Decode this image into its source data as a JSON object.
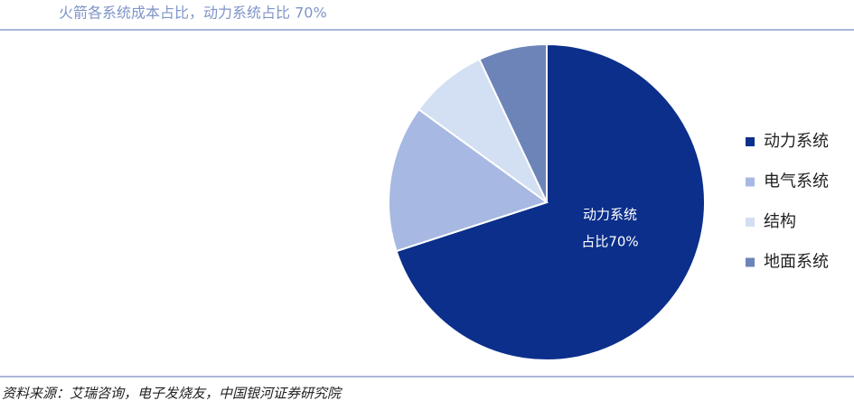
{
  "chart_data": {
    "type": "pie",
    "title": "火箭各系统成本占比，动力系统占比 70%",
    "categories": [
      "动力系统",
      "电气系统",
      "结构",
      "地面系统"
    ],
    "values": [
      70,
      15,
      8,
      7
    ],
    "colors": [
      "#0b2f8a",
      "#a7b9e2",
      "#d3dff2",
      "#6c84b8"
    ],
    "annotation": [
      "动力系统",
      "占比70%"
    ],
    "legend": "right",
    "source": "资料来源：艾瑞咨询，电子发烧友，中国银河证券研究院"
  }
}
